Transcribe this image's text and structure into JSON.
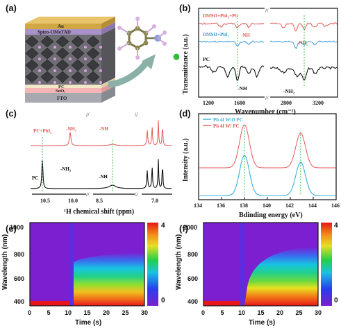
{
  "panel_labels": {
    "a": "(a)",
    "b": "(b)",
    "c": "(c)",
    "d": "(d)",
    "e": "(e)",
    "f": "(f)"
  },
  "panel_a": {
    "layers": [
      "Au",
      "Spiro-OMeTAD",
      "PC",
      "SnO₂",
      "FTO"
    ]
  },
  "panel_b": {
    "ylabel": "Transmittance (a.u.)",
    "xlabel": "Wavenumber (cm⁻¹)",
    "xticks": [
      "1200",
      "1600",
      "2800",
      "3200"
    ],
    "series": [
      "DMSO+PbI₂+PC",
      "DMSO+PbI₂",
      "PC"
    ],
    "annotations": [
      "-NH",
      "-NH₂",
      "-NH",
      "-NH₂"
    ],
    "colors": {
      "top": "#e05a55",
      "mid": "#3a9ad9",
      "bottom": "#111111"
    }
  },
  "panel_c": {
    "xlabel": "¹H chemical shift (ppm)",
    "xticks": [
      "10.5",
      "10.0",
      "8.5",
      "7.0"
    ],
    "series": [
      "PC+PbI₂",
      "PC"
    ],
    "annotations": [
      "-NH₂",
      "-NH",
      "-NH₂",
      "-NH"
    ],
    "colors": {
      "top": "#e05a55",
      "bottom": "#111111"
    }
  },
  "panel_d": {
    "ylabel": "Intensity (a.u.)",
    "xlabel": "Bdinding energy (eV)",
    "xticks": [
      "134",
      "136",
      "138",
      "140",
      "142",
      "144",
      "146"
    ],
    "series": [
      "Pb 4f W/O PC",
      "Pb 4f W/ PC"
    ],
    "colors": {
      "wo": "#3ab0d8",
      "w": "#e05a55"
    }
  },
  "panel_e": {
    "ylabel": "Wavelength (nm)",
    "xlabel": "Time (s)",
    "xticks": [
      "0",
      "5",
      "10",
      "15",
      "20",
      "25",
      "30"
    ],
    "yticks": [
      "400",
      "600",
      "800",
      "1000"
    ],
    "colorbar_ticks": [
      "4",
      "0"
    ]
  },
  "panel_f": {
    "ylabel": "Wavelength (nm)",
    "xlabel": "Time (s)",
    "xticks": [
      "0",
      "5",
      "10",
      "15",
      "20",
      "25",
      "30"
    ],
    "yticks": [
      "400",
      "600",
      "800",
      "1000"
    ],
    "colorbar_ticks": [
      "4",
      "0"
    ]
  },
  "chart_data": [
    {
      "type": "line",
      "panel": "b",
      "series": [
        {
          "name": "DMSO+PbI₂+PC"
        },
        {
          "name": "DMSO+PbI₂"
        },
        {
          "name": "PC"
        }
      ],
      "xlabel": "Wavenumber (cm⁻¹)",
      "ylabel": "Transmittance (a.u.)"
    },
    {
      "type": "line",
      "panel": "c",
      "series": [
        {
          "name": "PC+PbI₂"
        },
        {
          "name": "PC"
        }
      ],
      "xlabel": "¹H chemical shift (ppm)"
    },
    {
      "type": "line",
      "panel": "d",
      "series": [
        {
          "name": "Pb 4f W/O PC",
          "peaks": [
            138.0,
            142.9
          ]
        },
        {
          "name": "Pb 4f W/ PC",
          "peaks": [
            138.0,
            142.9
          ]
        }
      ],
      "xlabel": "Bdinding energy (eV)",
      "ylabel": "Intensity (a.u.)",
      "xlim": [
        134,
        146
      ]
    },
    {
      "type": "heatmap",
      "panel": "e",
      "xlabel": "Time (s)",
      "ylabel": "Wavelength (nm)",
      "xlim": [
        0,
        30
      ],
      "ylim": [
        380,
        1050
      ],
      "zlim": [
        0,
        4
      ]
    },
    {
      "type": "heatmap",
      "panel": "f",
      "xlabel": "Time (s)",
      "ylabel": "Wavelength (nm)",
      "xlim": [
        0,
        30
      ],
      "ylim": [
        380,
        1050
      ],
      "zlim": [
        0,
        4
      ]
    }
  ]
}
